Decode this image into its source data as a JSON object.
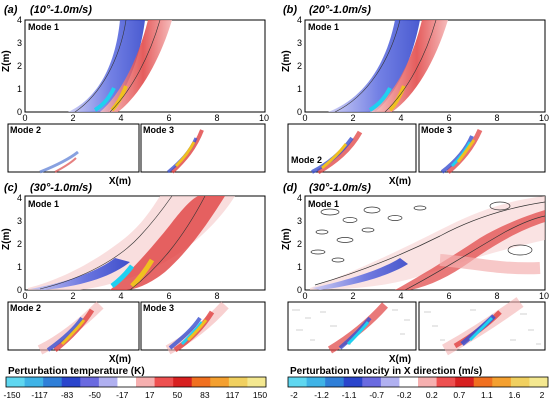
{
  "panels": [
    {
      "letter": "(a)",
      "condition": "(10°-1.0m/s)"
    },
    {
      "letter": "(b)",
      "condition": "(20°-1.0m/s)"
    },
    {
      "letter": "(c)",
      "condition": "(30°-1.0m/s)"
    },
    {
      "letter": "(d)",
      "condition": "(30°-1.0m/s)"
    }
  ],
  "modes": {
    "m1": "Mode 1",
    "m2": "Mode 2",
    "m3": "Mode 3"
  },
  "axes": {
    "xlabel": "X(m)",
    "ylabel": "Z(m)",
    "xticks": [
      "0",
      "2",
      "4",
      "6",
      "8",
      "10"
    ],
    "yticks": [
      "0",
      "1",
      "2",
      "3",
      "4"
    ]
  },
  "colorbars": [
    {
      "title": "Perturbation temperature (K)",
      "labels": [
        "-150",
        "-117",
        "-83",
        "-50",
        "-17",
        "17",
        "50",
        "83",
        "117",
        "150"
      ],
      "colors": [
        "#5fd7f0",
        "#3fb3e6",
        "#2f7fd8",
        "#2a45cc",
        "#6a6ae0",
        "#b0b0f0",
        "#ffffff",
        "#f6b0b0",
        "#ee5050",
        "#d82020",
        "#f07020",
        "#f4a030",
        "#f0d060",
        "#f4e890"
      ]
    },
    {
      "title": "Perturbation velocity in X direction (m/s)",
      "labels": [
        "-2",
        "-1.2",
        "-1.1",
        "-0.7",
        "-0.2",
        "0.2",
        "0.7",
        "1.1",
        "1.6",
        "2"
      ],
      "colors": [
        "#5fd7f0",
        "#3fb3e6",
        "#2f7fd8",
        "#2a45cc",
        "#6a6ae0",
        "#b0b0f0",
        "#ffffff",
        "#f6b0b0",
        "#ee5050",
        "#d82020",
        "#f07020",
        "#f4a030",
        "#f0d060",
        "#f4e890"
      ]
    }
  ]
}
